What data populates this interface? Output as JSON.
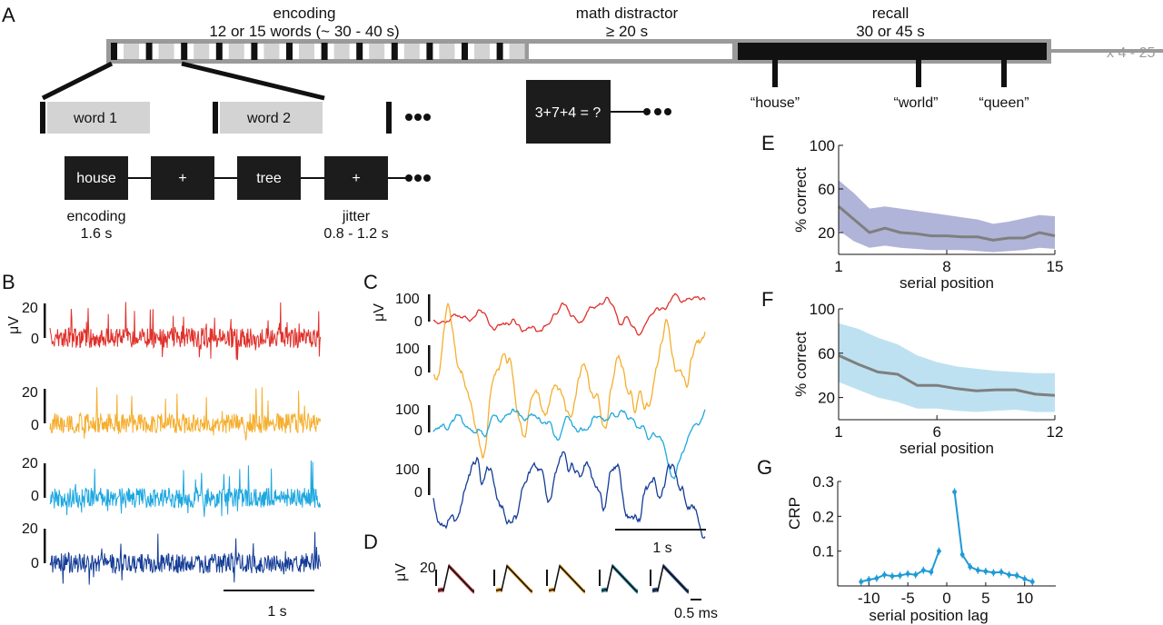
{
  "panels": {
    "A": "A",
    "B": "B",
    "C": "C",
    "D": "D",
    "E": "E",
    "F": "F",
    "G": "G"
  },
  "timeline": {
    "encoding_title": "encoding",
    "encoding_sub": "12 or 15 words (~ 30 - 40 s)",
    "math_title": "math distractor",
    "math_sub": "≥ 20 s",
    "recall_title": "recall",
    "recall_sub": "30 or 45 s",
    "repeat": "x 4 - 25",
    "recalled_words": [
      "“house”",
      "“world”",
      "“queen”"
    ]
  },
  "words": {
    "word1": "word 1",
    "word2": "word 2"
  },
  "math_problem": "3+7+4 = ?",
  "events": {
    "boxes": [
      "house",
      "+",
      "tree",
      "+"
    ],
    "encoding_label": "encoding",
    "encoding_dur": "1.6 s",
    "jitter_label": "jitter",
    "jitter_dur": "0.8 - 1.2 s"
  },
  "panel_b": {
    "unit": "μV",
    "ticks_top": [
      "20",
      "0"
    ],
    "scale": "1 s",
    "trace_colors": [
      "#e0302a",
      "#f5ae2e",
      "#1ea8e0",
      "#143c96"
    ]
  },
  "panel_c": {
    "unit": "μV",
    "ticks_top": [
      "100",
      "0"
    ],
    "scale": "1 s",
    "trace_colors": [
      "#e0302a",
      "#f5ae2e",
      "#1ea8e0",
      "#143c96"
    ]
  },
  "panel_d": {
    "unit": "μV",
    "tick": "20",
    "scale": "0.5 ms",
    "colors": [
      "#b8282a",
      "#e89a1f",
      "#e89a1f",
      "#11789a",
      "#123a84"
    ]
  },
  "chart_data": [
    {
      "type": "area",
      "panel": "E",
      "xlabel": "serial position",
      "ylabel": "% correct",
      "xticks": [
        "1",
        "8",
        "15"
      ],
      "yticks": [
        "100",
        "60",
        "20"
      ],
      "xlim": [
        1,
        15
      ],
      "ylim": [
        0,
        100
      ],
      "x": [
        1,
        2,
        3,
        4,
        5,
        6,
        7,
        8,
        9,
        10,
        11,
        12,
        13,
        14,
        15
      ],
      "mean": [
        44,
        32,
        20,
        24,
        20,
        19,
        17,
        17,
        16,
        16,
        13,
        15,
        15,
        20,
        17
      ],
      "upper": [
        68,
        56,
        42,
        44,
        42,
        40,
        38,
        36,
        34,
        32,
        28,
        30,
        33,
        36,
        35
      ],
      "lower": [
        22,
        12,
        6,
        8,
        6,
        5,
        4,
        4,
        4,
        3,
        2,
        3,
        4,
        6,
        5
      ],
      "line_color": "#7f7f7f",
      "band_color": "#a7acd4"
    },
    {
      "type": "area",
      "panel": "F",
      "xlabel": "serial position",
      "ylabel": "% correct",
      "xticks": [
        "1",
        "6",
        "12"
      ],
      "yticks": [
        "100",
        "60",
        "20"
      ],
      "xlim": [
        1,
        12
      ],
      "ylim": [
        0,
        100
      ],
      "x": [
        1,
        2,
        3,
        4,
        5,
        6,
        7,
        8,
        9,
        10,
        11,
        12
      ],
      "mean": [
        58,
        50,
        43,
        41,
        31,
        31,
        28,
        26,
        27,
        27,
        23,
        22
      ],
      "upper": [
        87,
        82,
        74,
        68,
        58,
        52,
        48,
        46,
        44,
        43,
        42,
        42
      ],
      "lower": [
        34,
        27,
        20,
        16,
        10,
        10,
        8,
        7,
        8,
        9,
        7,
        7
      ],
      "line_color": "#7f7f7f",
      "band_color": "#b7def0"
    },
    {
      "type": "line",
      "panel": "G",
      "xlabel": "serial position lag",
      "ylabel": "CRP",
      "xticks": [
        "-10",
        "-5",
        "0",
        "5",
        "10"
      ],
      "yticks": [
        "0.3",
        "0.2",
        "0.1"
      ],
      "xlim": [
        -14,
        14
      ],
      "ylim": [
        0,
        0.3
      ],
      "series": [
        {
          "x": [
            -11,
            -10,
            -9,
            -8,
            -7,
            -6,
            -5,
            -4,
            -3,
            -2,
            -1
          ],
          "y": [
            0.012,
            0.018,
            0.022,
            0.032,
            0.028,
            0.03,
            0.035,
            0.032,
            0.045,
            0.04,
            0.1
          ]
        },
        {
          "x": [
            1,
            2,
            3,
            4,
            5,
            6,
            7,
            8,
            9,
            10,
            11
          ],
          "y": [
            0.27,
            0.09,
            0.055,
            0.045,
            0.042,
            0.038,
            0.04,
            0.032,
            0.03,
            0.02,
            0.012
          ]
        }
      ],
      "line_color": "#1f9ad6"
    }
  ]
}
